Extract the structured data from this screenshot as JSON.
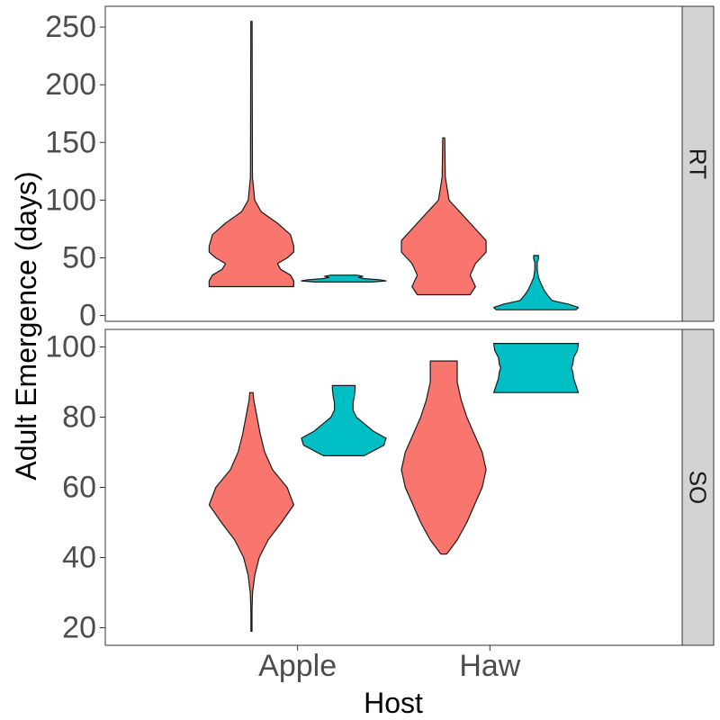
{
  "chart_data": {
    "type": "violin",
    "xlabel": "Host",
    "ylabel": "Adult Emergence (days)",
    "categories": [
      "Apple",
      "Haw"
    ],
    "series_colors": [
      "#F8766D",
      "#00BFC4"
    ],
    "facets": [
      {
        "label": "RT",
        "ylim": [
          -5,
          268
        ],
        "yticks": [
          0,
          50,
          100,
          150,
          200,
          250
        ],
        "violins": [
          {
            "category": "Apple",
            "series": 0,
            "min": 25,
            "max": 255,
            "profile": [
              [
                25,
                0.13
              ],
              [
                30,
                0.13
              ],
              [
                35,
                0.12
              ],
              [
                40,
                0.09
              ],
              [
                45,
                0.08
              ],
              [
                50,
                0.11
              ],
              [
                55,
                0.13
              ],
              [
                60,
                0.13
              ],
              [
                70,
                0.12
              ],
              [
                80,
                0.08
              ],
              [
                90,
                0.03
              ],
              [
                100,
                0.01
              ],
              [
                120,
                0.003
              ],
              [
                255,
                0.002
              ]
            ]
          },
          {
            "category": "Apple",
            "series": 1,
            "min": 29,
            "max": 35,
            "profile": [
              [
                29,
                0.66
              ],
              [
                30,
                1.0
              ],
              [
                31,
                0.85
              ],
              [
                32,
                0.5
              ],
              [
                33,
                0.35
              ],
              [
                34,
                0.45
              ],
              [
                35,
                0.3
              ]
            ]
          },
          {
            "category": "Haw",
            "series": 0,
            "min": 18,
            "max": 154,
            "profile": [
              [
                18,
                0.05
              ],
              [
                25,
                0.06
              ],
              [
                35,
                0.05
              ],
              [
                45,
                0.06
              ],
              [
                55,
                0.08
              ],
              [
                65,
                0.08
              ],
              [
                75,
                0.06
              ],
              [
                90,
                0.03
              ],
              [
                100,
                0.01
              ],
              [
                120,
                0.003
              ],
              [
                154,
                0.002
              ]
            ]
          },
          {
            "category": "Haw",
            "series": 1,
            "min": 5,
            "max": 52,
            "profile": [
              [
                5,
                0.5
              ],
              [
                7,
                0.53
              ],
              [
                10,
                0.4
              ],
              [
                13,
                0.2
              ],
              [
                18,
                0.14
              ],
              [
                22,
                0.1
              ],
              [
                28,
                0.06
              ],
              [
                33,
                0.03
              ],
              [
                40,
                0.015
              ],
              [
                46,
                0.015
              ],
              [
                49,
                0.03
              ],
              [
                52,
                0.03
              ]
            ]
          }
        ]
      },
      {
        "label": "SO",
        "ylim": [
          15,
          105
        ],
        "yticks": [
          20,
          40,
          60,
          80,
          100
        ],
        "violins": [
          {
            "category": "Apple",
            "series": 0,
            "min": 19,
            "max": 87,
            "profile": [
              [
                19,
                0.005
              ],
              [
                25,
                0.005
              ],
              [
                30,
                0.01
              ],
              [
                35,
                0.03
              ],
              [
                40,
                0.07
              ],
              [
                45,
                0.15
              ],
              [
                50,
                0.27
              ],
              [
                55,
                0.38
              ],
              [
                60,
                0.32
              ],
              [
                65,
                0.19
              ],
              [
                70,
                0.12
              ],
              [
                75,
                0.08
              ],
              [
                80,
                0.05
              ],
              [
                85,
                0.02
              ],
              [
                87,
                0.015
              ]
            ]
          },
          {
            "category": "Apple",
            "series": 1,
            "min": 69,
            "max": 89,
            "profile": [
              [
                69,
                0.48
              ],
              [
                72,
                0.95
              ],
              [
                74,
                1.0
              ],
              [
                76,
                0.7
              ],
              [
                78,
                0.5
              ],
              [
                80,
                0.3
              ],
              [
                82,
                0.22
              ],
              [
                84,
                0.22
              ],
              [
                86,
                0.25
              ],
              [
                88,
                0.27
              ],
              [
                89,
                0.27
              ]
            ]
          },
          {
            "category": "Haw",
            "series": 0,
            "min": 41,
            "max": 96,
            "profile": [
              [
                41,
                0.015
              ],
              [
                45,
                0.07
              ],
              [
                50,
                0.12
              ],
              [
                55,
                0.16
              ],
              [
                60,
                0.2
              ],
              [
                65,
                0.22
              ],
              [
                70,
                0.2
              ],
              [
                75,
                0.16
              ],
              [
                80,
                0.12
              ],
              [
                85,
                0.09
              ],
              [
                90,
                0.07
              ],
              [
                96,
                0.07
              ]
            ]
          },
          {
            "category": "Haw",
            "series": 1,
            "min": 87,
            "max": 101,
            "profile": [
              [
                87,
                0.9
              ],
              [
                89,
                0.85
              ],
              [
                91,
                0.8
              ],
              [
                93,
                0.78
              ],
              [
                94,
                0.75
              ],
              [
                95,
                0.78
              ],
              [
                97,
                0.8
              ],
              [
                99,
                0.88
              ],
              [
                101,
                0.9
              ]
            ]
          }
        ]
      }
    ]
  }
}
